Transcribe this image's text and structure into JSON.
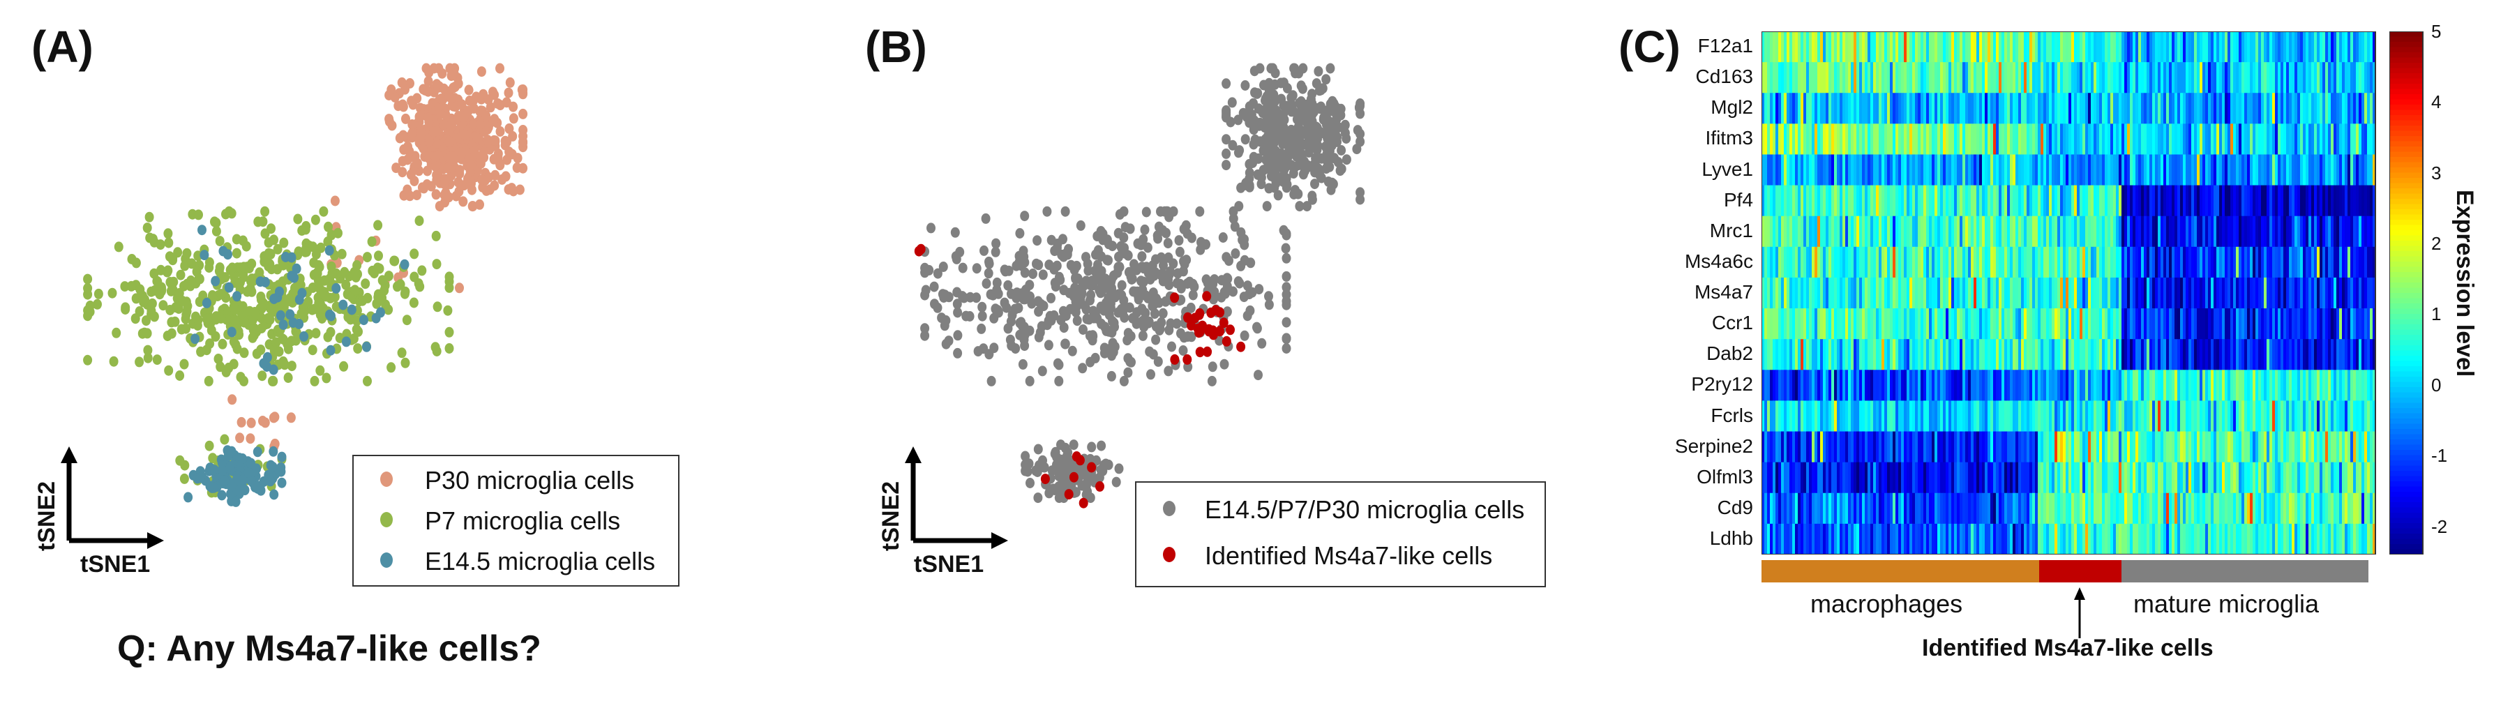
{
  "panel_a": {
    "label": "(A)",
    "question": "Q: Any Ms4a7-like cells?",
    "axis": {
      "x": "tSNE1",
      "y": "tSNE2"
    },
    "legend": [
      {
        "label": "P30 microglia cells",
        "color": "#E0977A"
      },
      {
        "label": "P7 microglia cells",
        "color": "#93B84B"
      },
      {
        "label": "E14.5 microglia cells",
        "color": "#4E8FA5"
      }
    ]
  },
  "panel_b": {
    "label": "(B)",
    "axis": {
      "x": "tSNE1",
      "y": "tSNE2"
    },
    "legend": [
      {
        "label": "E14.5/P7/P30 microglia cells",
        "color": "#808080"
      },
      {
        "label": "Identified Ms4a7-like cells",
        "color": "#C00000"
      }
    ]
  },
  "panel_c": {
    "label": "(C)",
    "colorbar_title": "Expression level",
    "colorbar_ticks": [
      "5",
      "4",
      "3",
      "2",
      "1",
      "0",
      "-1",
      "-2"
    ],
    "groups": [
      {
        "label": "macrophages",
        "color": "#D07F1E"
      },
      {
        "label": "",
        "color": "#C00000"
      },
      {
        "label": "mature microglia",
        "color": "#808080"
      }
    ],
    "arrow_caption": "Identified Ms4a7-like cells"
  },
  "chart_data": [
    {
      "type": "scatter",
      "title": "",
      "xlabel": "tSNE1",
      "ylabel": "tSNE2",
      "series": [
        {
          "name": "P30 microglia cells",
          "clusters": [
            {
              "cx": 0.66,
              "cy": 0.18,
              "rx": 0.1,
              "ry": 0.13,
              "n": 420
            },
            {
              "cx": 0.38,
              "cy": 0.72,
              "rx": 0.06,
              "ry": 0.05,
              "n": 12
            },
            {
              "cx": 0.55,
              "cy": 0.4,
              "rx": 0.15,
              "ry": 0.1,
              "n": 10
            }
          ]
        },
        {
          "name": "P7 microglia cells",
          "clusters": [
            {
              "cx": 0.38,
              "cy": 0.48,
              "rx": 0.27,
              "ry": 0.16,
              "n": 520
            },
            {
              "cx": 0.32,
              "cy": 0.8,
              "rx": 0.08,
              "ry": 0.05,
              "n": 30
            }
          ]
        },
        {
          "name": "E14.5 microglia cells",
          "clusters": [
            {
              "cx": 0.33,
              "cy": 0.82,
              "rx": 0.07,
              "ry": 0.05,
              "n": 110
            },
            {
              "cx": 0.42,
              "cy": 0.48,
              "rx": 0.2,
              "ry": 0.14,
              "n": 45
            }
          ]
        }
      ]
    },
    {
      "type": "scatter",
      "title": "",
      "xlabel": "tSNE1",
      "ylabel": "tSNE2",
      "series": [
        {
          "name": "E14.5/P7/P30 microglia cells",
          "clusters": [
            {
              "cx": 0.66,
              "cy": 0.18,
              "rx": 0.1,
              "ry": 0.13,
              "n": 380
            },
            {
              "cx": 0.38,
              "cy": 0.48,
              "rx": 0.27,
              "ry": 0.16,
              "n": 520
            },
            {
              "cx": 0.33,
              "cy": 0.81,
              "rx": 0.07,
              "ry": 0.05,
              "n": 120
            }
          ]
        },
        {
          "name": "Identified Ms4a7-like cells",
          "clusters": [
            {
              "cx": 0.52,
              "cy": 0.55,
              "rx": 0.07,
              "ry": 0.07,
              "n": 28
            },
            {
              "cx": 0.34,
              "cy": 0.82,
              "rx": 0.05,
              "ry": 0.05,
              "n": 8
            },
            {
              "cx": 0.1,
              "cy": 0.4,
              "rx": 0.01,
              "ry": 0.01,
              "n": 2
            }
          ]
        }
      ]
    },
    {
      "type": "heatmap",
      "title": "",
      "ylabel": "",
      "colorbar_label": "Expression level",
      "colorbar_range": [
        -2.4,
        5
      ],
      "rows": [
        "F12a1",
        "Cd163",
        "Mgl2",
        "Ifitm3",
        "Lyve1",
        "Pf4",
        "Mrc1",
        "Ms4a6c",
        "Ms4a7",
        "Ccr1",
        "Dab2",
        "P2ry12",
        "Fcrls",
        "Serpine2",
        "Olfml3",
        "Cd9",
        "Ldhb"
      ],
      "column_groups": [
        {
          "label": "macrophages",
          "fraction": 0.45
        },
        {
          "label": "Identified Ms4a7-like cells",
          "fraction": 0.135
        },
        {
          "label": "mature microglia",
          "fraction": 0.415
        }
      ],
      "mean_expression": [
        [
          1.2,
          0.6,
          0.0
        ],
        [
          1.0,
          0.3,
          0.0
        ],
        [
          0.0,
          -0.1,
          -0.2
        ],
        [
          1.2,
          0.2,
          0.0
        ],
        [
          -0.3,
          -0.5,
          -0.5
        ],
        [
          0.7,
          0.7,
          -1.8
        ],
        [
          0.7,
          0.6,
          -1.5
        ],
        [
          0.7,
          0.7,
          -1.2
        ],
        [
          0.7,
          0.6,
          -1.4
        ],
        [
          0.8,
          0.8,
          -1.2
        ],
        [
          0.6,
          0.6,
          -1.4
        ],
        [
          -1.0,
          -0.4,
          0.6
        ],
        [
          0.2,
          0.3,
          0.6
        ],
        [
          -1.2,
          0.8,
          0.9
        ],
        [
          -1.5,
          0.8,
          0.9
        ],
        [
          -0.9,
          0.9,
          0.8
        ],
        [
          -0.8,
          0.7,
          0.6
        ]
      ]
    }
  ]
}
